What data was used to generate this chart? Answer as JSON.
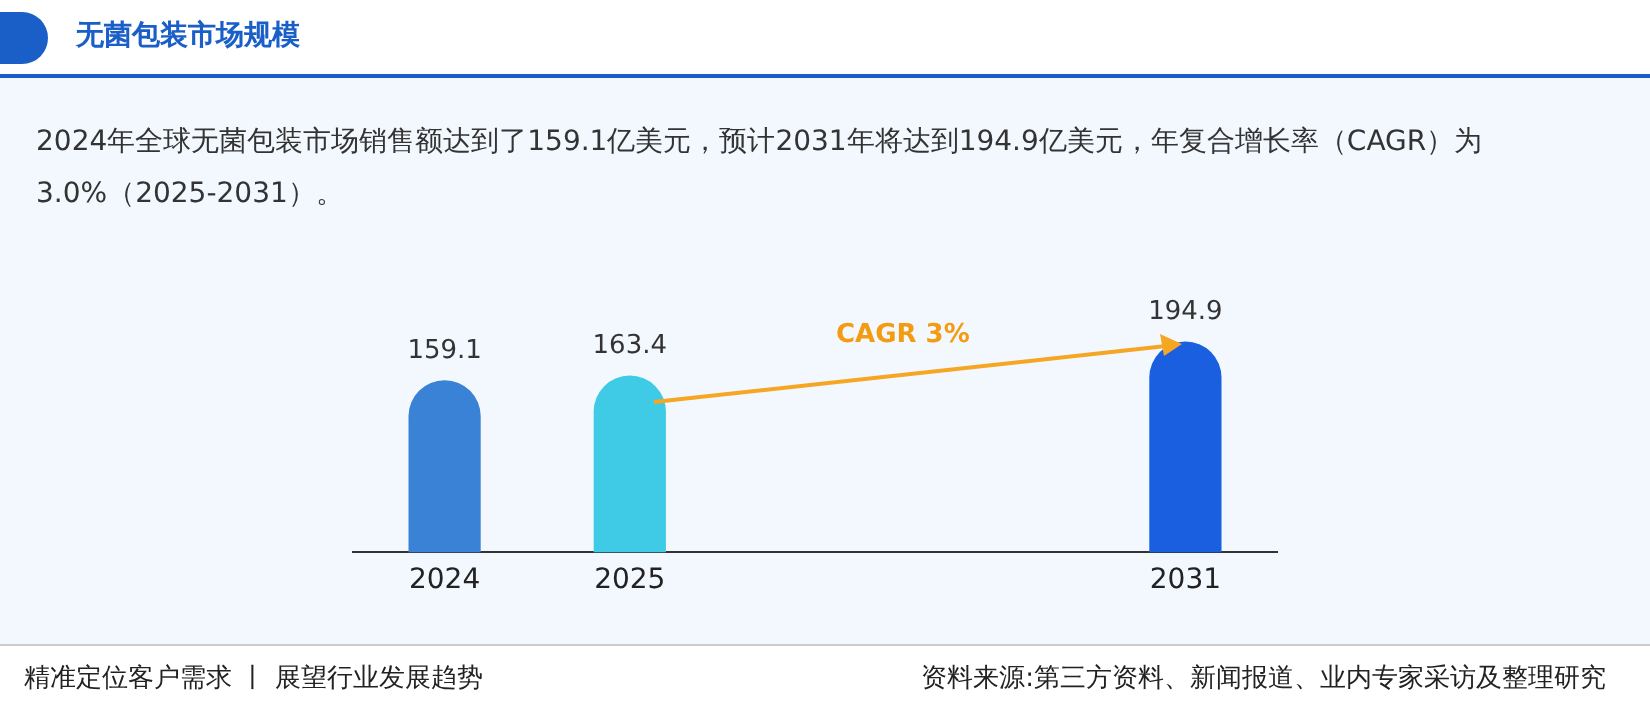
{
  "chart_data": {
    "type": "bar",
    "title": "无菌包装市场规模",
    "subtitle": "2024年全球无菌包装市场销售额达到了159.1亿美元，预计2031年将达到194.9亿美元，年复合增长率（CAGR）为3.0%（2025-2031）。",
    "categories": [
      "2024",
      "2025",
      null,
      null,
      "2031"
    ],
    "values": [
      159.1,
      163.4,
      null,
      null,
      194.9
    ],
    "colors": [
      "#3a82d6",
      "#3fcbe6",
      null,
      null,
      "#1a5fe0"
    ],
    "data_labels": true,
    "grid": false,
    "legend": false,
    "tick_labels": "x",
    "annotations": [
      "CAGR 3%",
      "精准定位客户需求 丨 展望行业发展趋势",
      "资料来源:第三方资料、新闻报道、业内专家采访及整理研究"
    ]
  }
}
